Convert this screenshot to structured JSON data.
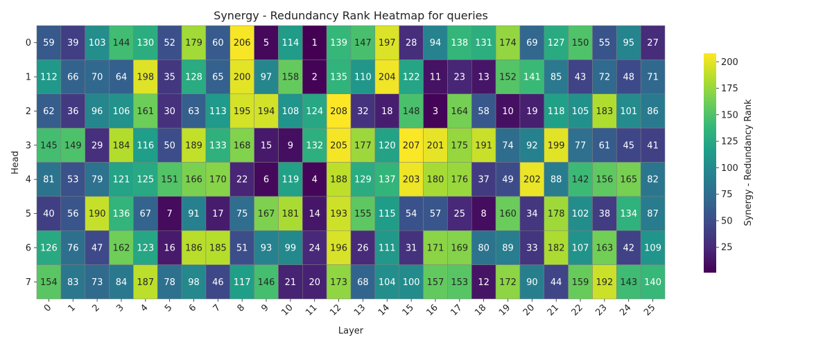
{
  "chart_data": {
    "type": "heatmap",
    "title": "Synergy - Redundancy Rank Heatmap for queries",
    "xlabel": "Layer",
    "ylabel": "Head",
    "x": [
      "0",
      "1",
      "2",
      "3",
      "4",
      "5",
      "6",
      "7",
      "8",
      "9",
      "10",
      "11",
      "12",
      "13",
      "14",
      "15",
      "16",
      "17",
      "18",
      "19",
      "20",
      "21",
      "22",
      "23",
      "24",
      "25"
    ],
    "y": [
      "0",
      "1",
      "2",
      "3",
      "4",
      "5",
      "6",
      "7"
    ],
    "values": [
      [
        59,
        39,
        103,
        144,
        130,
        52,
        179,
        60,
        206,
        5,
        114,
        1,
        139,
        147,
        197,
        28,
        94,
        138,
        131,
        174,
        69,
        127,
        150,
        55,
        95,
        27
      ],
      [
        112,
        66,
        70,
        64,
        198,
        35,
        128,
        65,
        200,
        97,
        158,
        2,
        135,
        110,
        204,
        122,
        11,
        23,
        13,
        152,
        141,
        85,
        43,
        72,
        48,
        71
      ],
      [
        62,
        36,
        96,
        106,
        161,
        30,
        63,
        113,
        195,
        194,
        108,
        124,
        208,
        32,
        18,
        148,
        3,
        164,
        58,
        10,
        19,
        118,
        105,
        183,
        101,
        86
      ],
      [
        145,
        149,
        29,
        184,
        116,
        50,
        189,
        133,
        168,
        15,
        9,
        132,
        205,
        177,
        120,
        207,
        201,
        175,
        191,
        74,
        92,
        199,
        77,
        61,
        45,
        41
      ],
      [
        81,
        53,
        79,
        121,
        125,
        151,
        166,
        170,
        22,
        6,
        119,
        4,
        188,
        129,
        137,
        203,
        180,
        176,
        37,
        49,
        202,
        88,
        142,
        156,
        165,
        82
      ],
      [
        40,
        56,
        190,
        136,
        67,
        7,
        91,
        17,
        75,
        167,
        181,
        14,
        193,
        155,
        115,
        54,
        57,
        25,
        8,
        160,
        34,
        178,
        102,
        38,
        134,
        87
      ],
      [
        126,
        76,
        47,
        162,
        123,
        16,
        186,
        185,
        51,
        93,
        99,
        24,
        196,
        26,
        111,
        31,
        171,
        169,
        80,
        89,
        33,
        182,
        107,
        163,
        42,
        109
      ],
      [
        154,
        83,
        73,
        84,
        187,
        78,
        98,
        46,
        117,
        146,
        21,
        20,
        173,
        68,
        104,
        100,
        157,
        153,
        12,
        172,
        90,
        44,
        159,
        192,
        143,
        140
      ]
    ],
    "colorbar": {
      "label": "Synergy - Redundancy Rank",
      "ticks": [
        25,
        50,
        75,
        100,
        125,
        150,
        175,
        200
      ],
      "range": [
        1,
        208
      ],
      "colormap": "viridis"
    }
  }
}
